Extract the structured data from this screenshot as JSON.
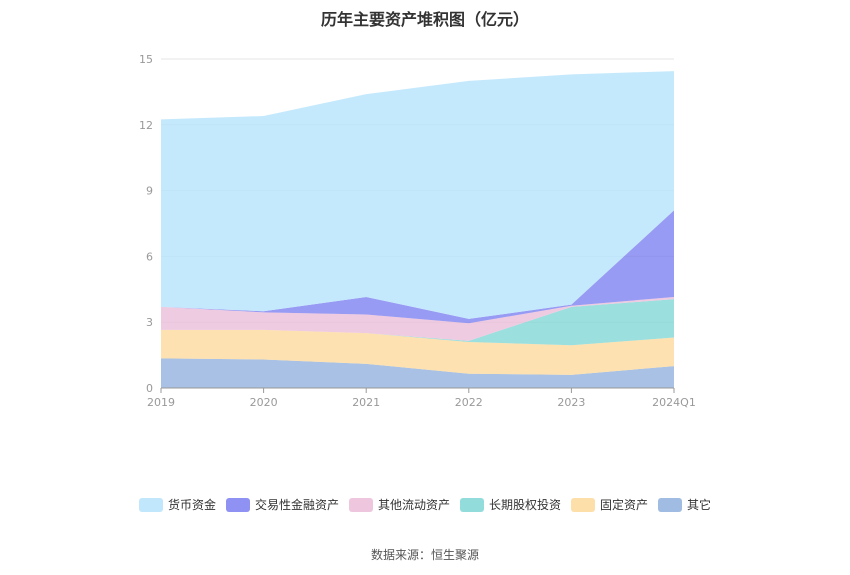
{
  "chart_data": {
    "type": "area",
    "title": "历年主要资产堆积图（亿元）",
    "categories": [
      "2019",
      "2020",
      "2021",
      "2022",
      "2023",
      "2024Q1"
    ],
    "y_ticks": [
      "0",
      "3",
      "6",
      "9",
      "12",
      "15"
    ],
    "ylim": [
      0,
      15
    ],
    "stacked": true,
    "grid": true,
    "legend_position": "bottom",
    "series": [
      {
        "name": "其它",
        "color": "#8fb0dd",
        "values": [
          1.35,
          1.3,
          1.1,
          0.65,
          0.6,
          1.0
        ]
      },
      {
        "name": "固定资产",
        "color": "#fdd99a",
        "values": [
          1.3,
          1.35,
          1.4,
          1.45,
          1.35,
          1.3
        ]
      },
      {
        "name": "长期股权投资",
        "color": "#7fd6d6",
        "values": [
          0.0,
          0.0,
          0.0,
          0.05,
          1.75,
          1.75
        ]
      },
      {
        "name": "其他流动资产",
        "color": "#ebbcd8",
        "values": [
          1.05,
          0.8,
          0.85,
          0.8,
          0.05,
          0.1
        ]
      },
      {
        "name": "交易性金融资产",
        "color": "#7b7ff0",
        "values": [
          0.0,
          0.05,
          0.8,
          0.2,
          0.05,
          3.95
        ]
      },
      {
        "name": "货币资金",
        "color": "#b5e3fb",
        "values": [
          8.55,
          8.9,
          9.25,
          10.85,
          10.5,
          6.35
        ]
      }
    ]
  },
  "legend_order": [
    "货币资金",
    "交易性金融资产",
    "其他流动资产",
    "长期股权投资",
    "固定资产",
    "其它"
  ],
  "source": "数据来源：恒生聚源"
}
